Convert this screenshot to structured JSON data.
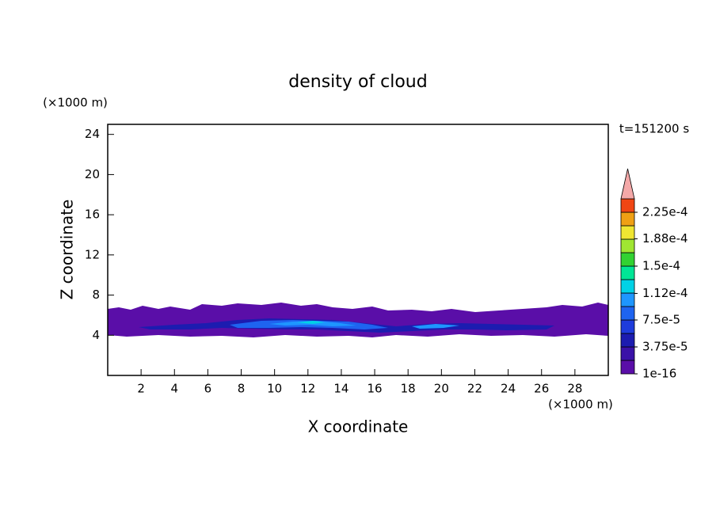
{
  "chart_data": {
    "type": "contour",
    "title": "density of cloud",
    "time_label": "t=151200 s",
    "xlabel": "X coordinate",
    "ylabel": "Z coordinate",
    "x_unit": "(×1000 m)",
    "y_unit": "(×1000 m)",
    "xlim": [
      0,
      30
    ],
    "ylim": [
      0,
      25
    ],
    "xticks": [
      2,
      4,
      6,
      8,
      10,
      12,
      14,
      16,
      18,
      20,
      22,
      24,
      26,
      28
    ],
    "yticks": [
      4,
      8,
      12,
      16,
      20,
      24
    ],
    "colorbar": {
      "lim": [
        1e-16,
        0.00024375
      ],
      "colors": [
        "#5a0ea8",
        "#3a12a8",
        "#1c1cb0",
        "#1e3cdc",
        "#1e64f0",
        "#1e96ff",
        "#00d2e6",
        "#00e696",
        "#32d232",
        "#a0e632",
        "#f0e632",
        "#f0a014",
        "#f04614"
      ],
      "extend_color": "#f4a8a8",
      "ticks": [
        1e-16,
        {
          "value": 3.75e-05,
          "label": "3.75e-5"
        },
        {
          "value": 7.5e-05,
          "label": "7.5e-5"
        },
        {
          "value": 0.000112,
          "label": "1.12e-4"
        },
        {
          "value": 0.00015,
          "label": "1.5e-4"
        },
        {
          "value": 0.000188,
          "label": "1.88e-4"
        },
        {
          "value": 0.000225,
          "label": "2.25e-4"
        }
      ]
    }
  }
}
